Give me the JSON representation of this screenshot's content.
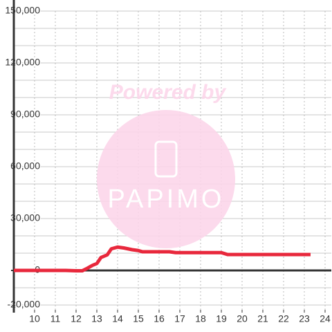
{
  "chart_data": {
    "type": "line",
    "watermark": {
      "top": "Powered by",
      "logo": "PAPIMO"
    },
    "x": [
      9,
      10,
      11,
      11.5,
      12,
      12.3,
      12.5,
      12.8,
      13,
      13.2,
      13.5,
      13.7,
      14,
      14.3,
      14.7,
      15,
      15.2,
      16.5,
      16.8,
      19,
      19.3,
      23.3
    ],
    "series": [
      {
        "color": "#e8283c",
        "values": [
          0,
          0,
          0,
          0,
          -200,
          -200,
          1000,
          3000,
          4000,
          7500,
          9000,
          12500,
          13500,
          13000,
          12000,
          11500,
          10800,
          10800,
          10300,
          10300,
          9200,
          9200
        ]
      }
    ],
    "xlim": [
      9,
      24.3
    ],
    "xticks": [
      10,
      11,
      12,
      13,
      14,
      15,
      16,
      17,
      18,
      19,
      20,
      21,
      22,
      23,
      24
    ],
    "ylim": [
      -20000,
      150000
    ],
    "yticks": [
      {
        "value": -20000,
        "label": "-20,000"
      },
      0,
      {
        "value": 30000,
        "label": "30,000"
      },
      {
        "value": 60000,
        "label": "60,000"
      },
      {
        "value": 90000,
        "label": "90,000"
      },
      {
        "value": 120000,
        "label": "120,000"
      },
      {
        "value": 150000,
        "label": "150,000"
      }
    ],
    "ygrid": [
      -20000,
      -10000,
      0,
      10000,
      20000,
      30000,
      40000,
      50000,
      60000,
      70000,
      80000,
      90000,
      100000,
      110000,
      120000,
      130000,
      140000,
      150000
    ],
    "grid": true
  }
}
